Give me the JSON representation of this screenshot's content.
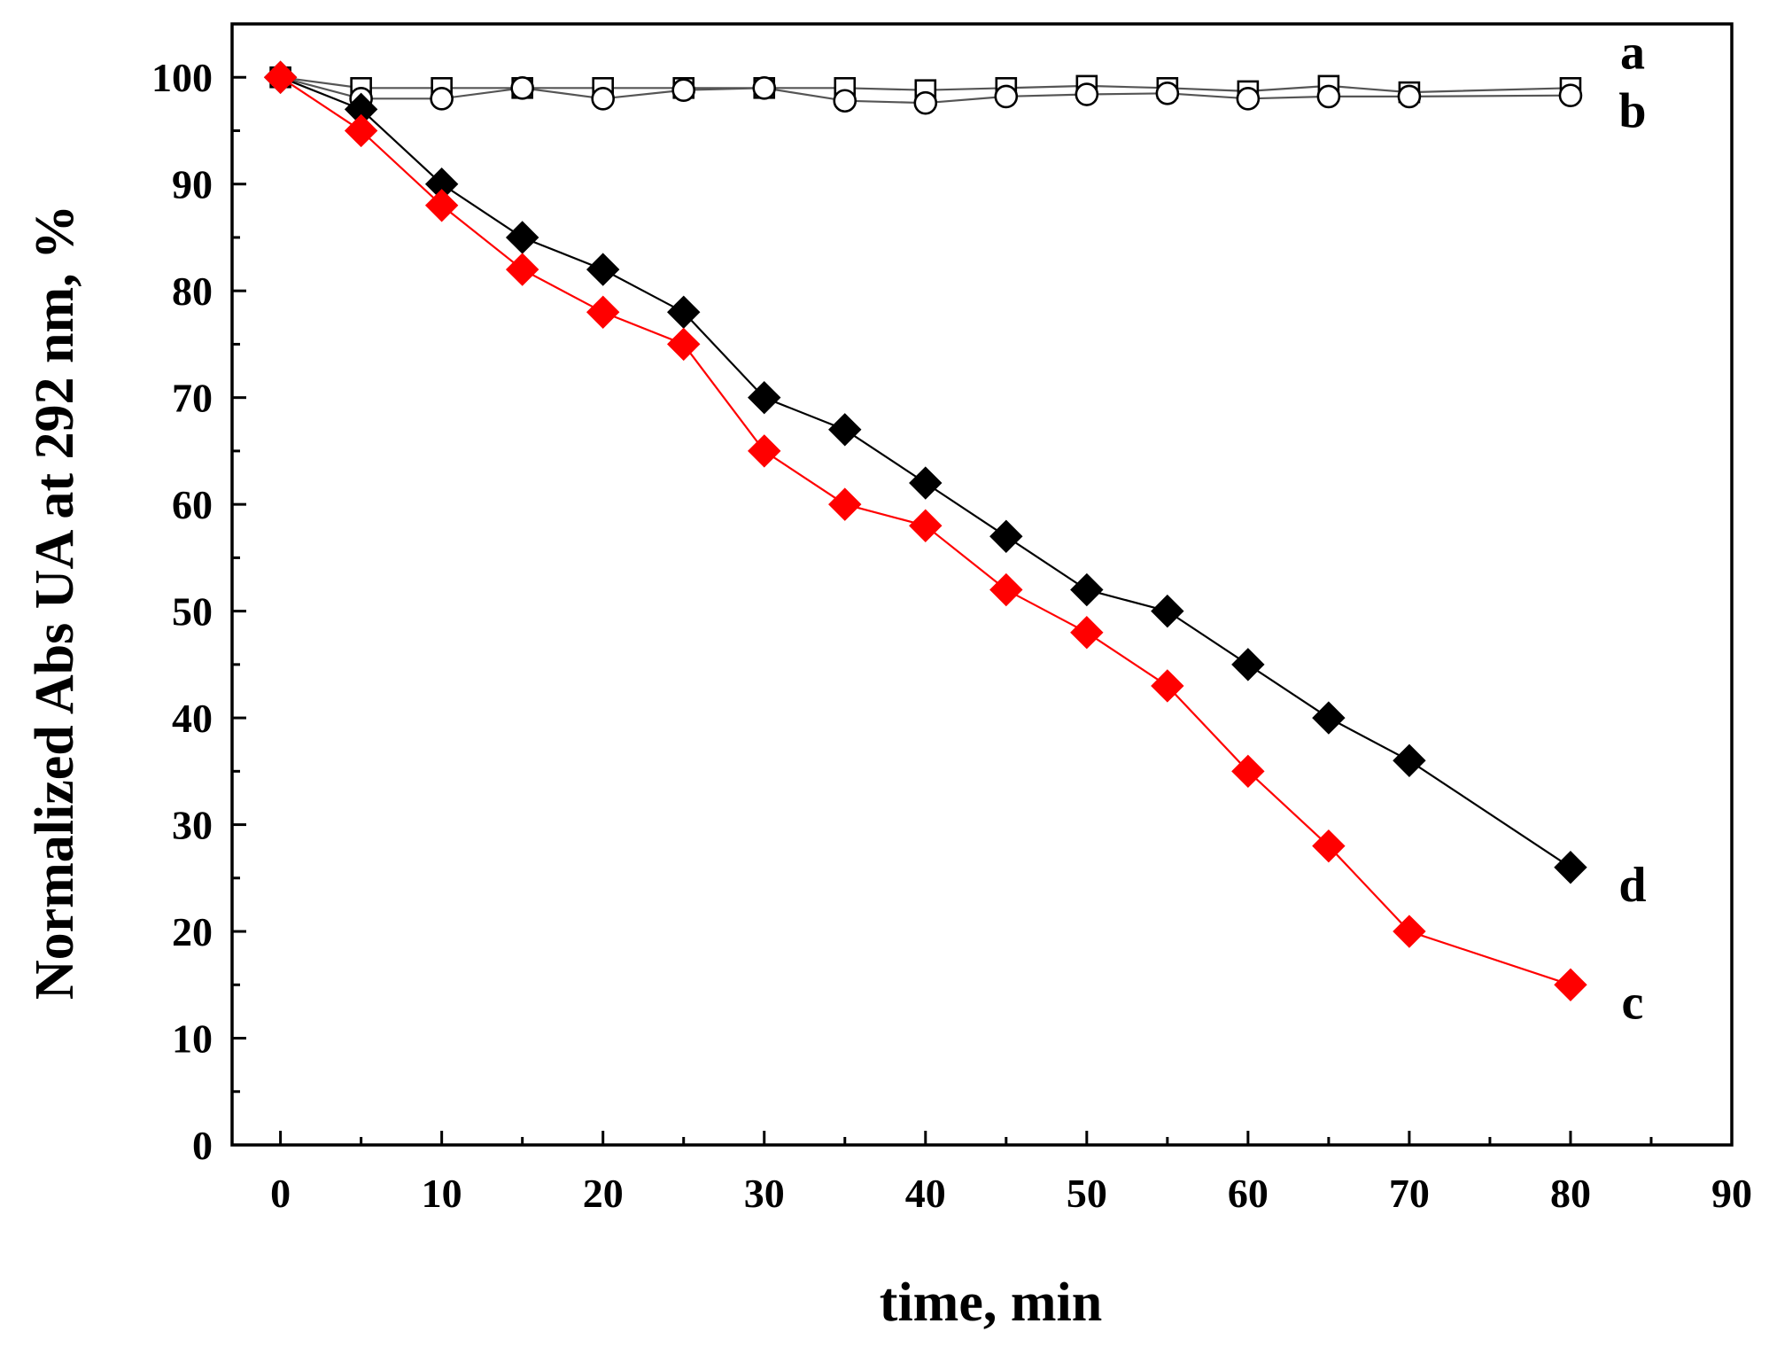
{
  "chart_data": {
    "type": "line",
    "title": "",
    "xlabel": "time, min",
    "ylabel": "Normalized Abs UA at 292 nm, %",
    "xlim": [
      -3,
      90
    ],
    "ylim": [
      0,
      105
    ],
    "xticks": [
      0,
      10,
      20,
      30,
      40,
      50,
      60,
      70,
      80,
      90
    ],
    "yticks": [
      0,
      10,
      20,
      30,
      40,
      50,
      60,
      70,
      80,
      90,
      100
    ],
    "grid": false,
    "series": [
      {
        "name": "a",
        "marker": "square-open",
        "color": "#000000",
        "line_color": "#555555",
        "x": [
          0,
          5,
          10,
          15,
          20,
          25,
          30,
          35,
          40,
          45,
          50,
          55,
          60,
          65,
          70,
          80
        ],
        "y": [
          100,
          99,
          99,
          99,
          99,
          99,
          99,
          99,
          98.8,
          99,
          99.2,
          99,
          98.7,
          99.2,
          98.6,
          99
        ]
      },
      {
        "name": "b",
        "marker": "circle-open",
        "color": "#000000",
        "line_color": "#555555",
        "x": [
          0,
          5,
          10,
          15,
          20,
          25,
          30,
          35,
          40,
          45,
          50,
          55,
          60,
          65,
          70,
          80
        ],
        "y": [
          100,
          98,
          98,
          99,
          98,
          98.8,
          99,
          97.8,
          97.6,
          98.2,
          98.4,
          98.5,
          98,
          98.2,
          98.2,
          98.3
        ]
      },
      {
        "name": "c",
        "marker": "diamond-filled",
        "color": "#ff0000",
        "line_color": "#ff0000",
        "x": [
          0,
          5,
          10,
          15,
          20,
          25,
          30,
          35,
          40,
          45,
          50,
          55,
          60,
          65,
          70,
          80
        ],
        "y": [
          100,
          95,
          88,
          82,
          78,
          75,
          65,
          60,
          58,
          52,
          48,
          43,
          35,
          28,
          20,
          15
        ]
      },
      {
        "name": "d",
        "marker": "diamond-filled",
        "color": "#000000",
        "line_color": "#000000",
        "x": [
          0,
          5,
          10,
          15,
          20,
          25,
          30,
          35,
          40,
          45,
          50,
          55,
          60,
          65,
          70,
          80
        ],
        "y": [
          100,
          97,
          90,
          85,
          82,
          78,
          70,
          67,
          62,
          57,
          52,
          50,
          45,
          40,
          36,
          26
        ]
      }
    ],
    "series_labels": [
      {
        "text": "a",
        "series": "a"
      },
      {
        "text": "b",
        "series": "b"
      },
      {
        "text": "d",
        "series": "d"
      },
      {
        "text": "c",
        "series": "c"
      }
    ]
  }
}
